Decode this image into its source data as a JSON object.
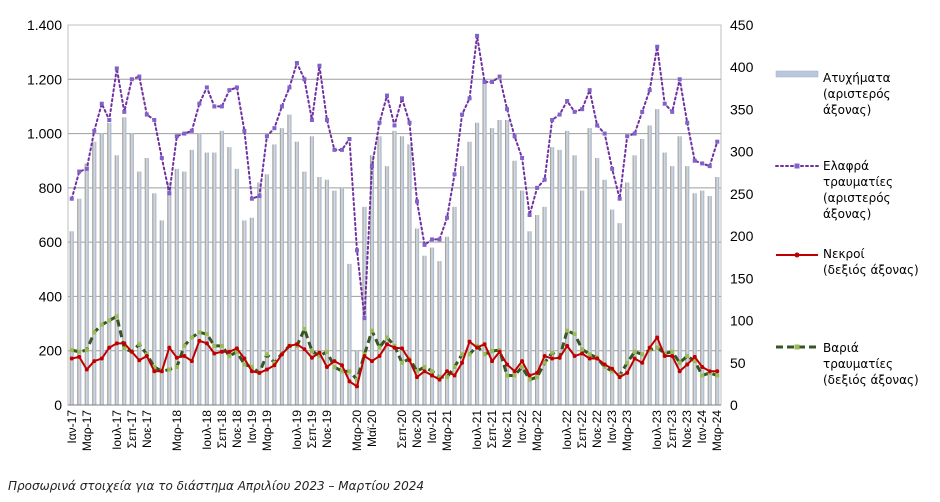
{
  "chart_data": {
    "type": "bar",
    "x": [
      "Ιαν-17",
      "Φεβ-17",
      "Μαρ-17",
      "Απρ-17",
      "Μαϊ-17",
      "Ιουν-17",
      "Ιουλ-17",
      "Αυγ-17",
      "Σεπ-17",
      "Οκτ-17",
      "Νοε-17",
      "Δεκ-17",
      "Ιαν-18",
      "Φεβ-18",
      "Μαρ-18",
      "Απρ-18",
      "Μαϊ-18",
      "Ιουν-18",
      "Ιουλ-18",
      "Αυγ-18",
      "Σεπ-18",
      "Οκτ-18",
      "Νοε-18",
      "Δεκ-18",
      "Ιαν-19",
      "Φεβ-19",
      "Μαρ-19",
      "Απρ-19",
      "Μαϊ-19",
      "Ιουν-19",
      "Ιουλ-19",
      "Αυγ-19",
      "Σεπ-19",
      "Οκτ-19",
      "Νοε-19",
      "Δεκ-19",
      "Ιαν-20",
      "Φεβ-20",
      "Μαρ-20",
      "Απρ-20",
      "Μαϊ-20",
      "Ιουν-20",
      "Ιουλ-20",
      "Αυγ-20",
      "Σεπ-20",
      "Οκτ-20",
      "Νοε-20",
      "Δεκ-20",
      "Ιαν-21",
      "Φεβ-21",
      "Μαρ-21",
      "Απρ-21",
      "Μαϊ-21",
      "Ιουν-21",
      "Ιουλ-21",
      "Αυγ-21",
      "Σεπ-21",
      "Οκτ-21",
      "Νοε-21",
      "Δεκ-21",
      "Ιαν-22",
      "Φεβ-22",
      "Μαρ-22",
      "Απρ-22",
      "Μαϊ-22",
      "Ιουν-22",
      "Ιουλ-22",
      "Αυγ-22",
      "Σεπ-22",
      "Οκτ-22",
      "Νοε-22",
      "Δεκ-22",
      "Ιαν-23",
      "Φεβ-23",
      "Μαρ-23",
      "Απρ-23",
      "Μαϊ-23",
      "Ιουν-23",
      "Ιουλ-23",
      "Αυγ-23",
      "Σεπ-23",
      "Οκτ-23",
      "Νοε-23",
      "Δεκ-23",
      "Ιαν-24",
      "Φεβ-24",
      "Μαρ-24"
    ],
    "x_tick_labels": [
      "Ιαν-17",
      "Μαρ-17",
      "Ιουλ-17",
      "Σεπ-17",
      "Νοε-17",
      "Μαρ-18",
      "Ιουλ-18",
      "Σεπ-18",
      "Νοε-18",
      "Ιαν-19",
      "Μαρ-19",
      "Ιουλ-19",
      "Σεπ-19",
      "Νοε-19",
      "Μαρ-20",
      "Μαϊ-20",
      "Σεπ-20",
      "Νοε-20",
      "Ιαν-21",
      "Μαρ-21",
      "Ιουλ-21",
      "Σεπ-21",
      "Νοε-21",
      "Ιαν-22",
      "Μαρ-22",
      "Ιουλ-22",
      "Σεπ-22",
      "Νοε-22",
      "Ιαν-23",
      "Μαρ-23",
      "Ιουλ-23",
      "Σεπ-23",
      "Νοε-23",
      "Ιαν-24",
      "Μαρ-24"
    ],
    "y_left": {
      "lim": [
        0,
        1400
      ],
      "ticks": [
        0,
        200,
        400,
        600,
        800,
        1000,
        1200,
        1400
      ],
      "tick_labels": [
        "0",
        "200",
        "400",
        "600",
        "800",
        "1.000",
        "1.200",
        "1.400"
      ]
    },
    "y_right": {
      "lim": [
        0,
        450
      ],
      "ticks": [
        0,
        50,
        100,
        150,
        200,
        250,
        300,
        350,
        400,
        450
      ],
      "tick_labels": [
        "0",
        "50",
        "100",
        "150",
        "200",
        "250",
        "300",
        "350",
        "400",
        "450"
      ]
    },
    "grid": true,
    "legend_position": "right",
    "series": [
      {
        "name": "Ατυχήματα\n(αριστερός\nάξονας)",
        "type": "bar",
        "axis": "left",
        "color": "#b8c7dc",
        "values": [
          640,
          760,
          890,
          970,
          1000,
          1040,
          920,
          1060,
          1000,
          860,
          910,
          780,
          680,
          820,
          870,
          860,
          940,
          1000,
          930,
          930,
          1010,
          950,
          870,
          680,
          690,
          820,
          850,
          960,
          1020,
          1070,
          970,
          860,
          990,
          840,
          830,
          790,
          800,
          520,
          200,
          730,
          920,
          990,
          880,
          1010,
          990,
          960,
          650,
          550,
          580,
          530,
          620,
          730,
          880,
          970,
          1040,
          1200,
          1020,
          1050,
          1050,
          900,
          790,
          640,
          700,
          730,
          950,
          940,
          1010,
          920,
          790,
          1020,
          910,
          830,
          720,
          670,
          820,
          920,
          980,
          1030,
          1090,
          930,
          880,
          990,
          880,
          780,
          790,
          770,
          840
        ]
      },
      {
        "name": "Ελαφρά\nτραυματίες\n(αριστερός\nάξονας)",
        "type": "line",
        "axis": "left",
        "color": "#7030a0",
        "values": [
          760,
          860,
          870,
          1010,
          1110,
          1050,
          1240,
          1080,
          1200,
          1210,
          1070,
          1050,
          910,
          780,
          990,
          1000,
          1010,
          1110,
          1170,
          1100,
          1100,
          1160,
          1170,
          1010,
          760,
          770,
          990,
          1020,
          1100,
          1170,
          1260,
          1200,
          1050,
          1250,
          1050,
          940,
          940,
          980,
          570,
          320,
          880,
          1040,
          1140,
          1030,
          1130,
          1040,
          750,
          590,
          610,
          610,
          690,
          850,
          1070,
          1130,
          1360,
          1190,
          1190,
          1210,
          1090,
          990,
          910,
          700,
          800,
          830,
          1050,
          1070,
          1120,
          1080,
          1090,
          1160,
          1030,
          1000,
          870,
          760,
          990,
          1000,
          1080,
          1160,
          1320,
          1110,
          1080,
          1200,
          1040,
          900,
          890,
          880,
          970
        ]
      },
      {
        "name": "Νεκροί\n(δεξιός άξονας)",
        "type": "line",
        "axis": "right",
        "color": "#c00000",
        "values": [
          55,
          57,
          42,
          52,
          55,
          68,
          73,
          73,
          63,
          53,
          58,
          40,
          40,
          68,
          56,
          58,
          52,
          76,
          73,
          61,
          63,
          63,
          67,
          55,
          40,
          38,
          42,
          47,
          60,
          70,
          72,
          66,
          56,
          62,
          45,
          52,
          47,
          28,
          22,
          58,
          52,
          58,
          72,
          68,
          67,
          53,
          33,
          40,
          35,
          30,
          40,
          35,
          50,
          75,
          68,
          72,
          52,
          63,
          48,
          40,
          52,
          35,
          38,
          58,
          55,
          56,
          70,
          58,
          61,
          55,
          55,
          48,
          43,
          33,
          38,
          55,
          50,
          68,
          80,
          58,
          58,
          40,
          48,
          57,
          45,
          40,
          40
        ]
      },
      {
        "name": "Βαριά\nτραυματίες\n(δεξιός άξονας)",
        "type": "line",
        "axis": "right",
        "color": "#375623",
        "values": [
          65,
          63,
          65,
          86,
          95,
          100,
          105,
          67,
          63,
          72,
          60,
          45,
          40,
          42,
          45,
          70,
          80,
          86,
          84,
          70,
          70,
          58,
          63,
          48,
          45,
          38,
          60,
          50,
          61,
          70,
          70,
          90,
          64,
          58,
          63,
          45,
          40,
          40,
          30,
          60,
          88,
          68,
          80,
          70,
          50,
          55,
          40,
          45,
          40,
          33,
          33,
          45,
          60,
          60,
          70,
          60,
          64,
          65,
          35,
          35,
          45,
          30,
          33,
          50,
          62,
          56,
          88,
          84,
          66,
          60,
          56,
          45,
          40,
          35,
          50,
          63,
          60,
          65,
          68,
          61,
          63,
          50,
          58,
          52,
          35,
          38,
          35
        ]
      }
    ]
  },
  "footnote": "Προσωρινά στοιχεία για το διάστημα Απριλίου 2023 – Μαρτίου 2024"
}
